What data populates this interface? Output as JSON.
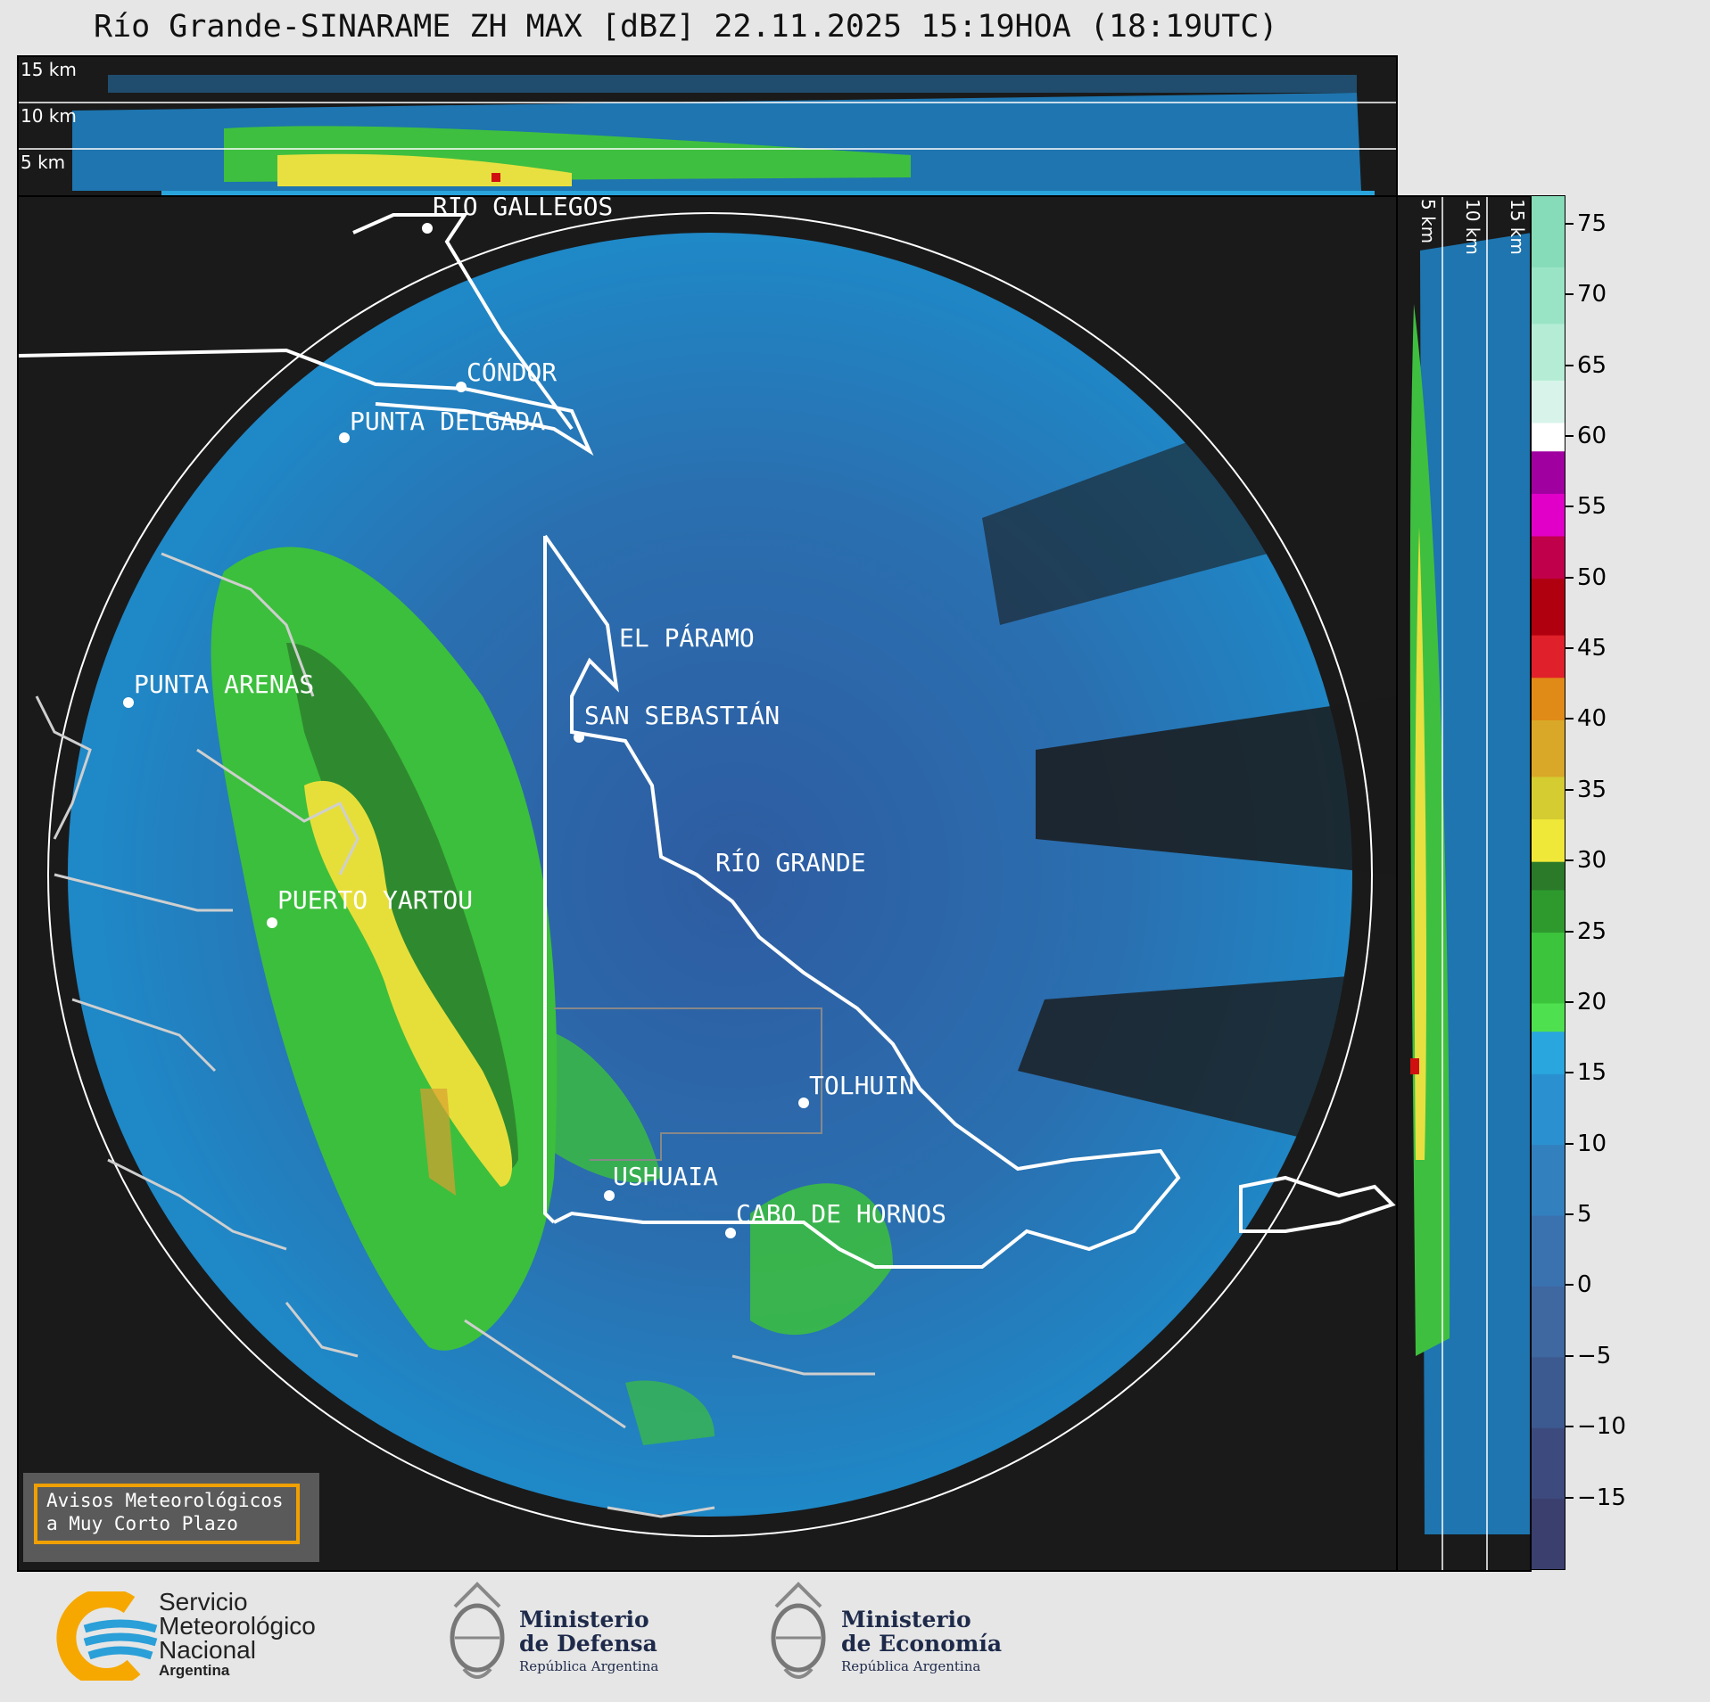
{
  "title": "Río Grande-SINARAME ZH MAX [dBZ] 22.11.2025 15:19HOA (18:19UTC)",
  "top_panel": {
    "levels": [
      "15 km",
      "10 km",
      "5 km"
    ]
  },
  "side_panel": {
    "levels": [
      "5 km",
      "10 km",
      "15 km"
    ]
  },
  "cities": [
    {
      "name": "RÍO GALLEGOS"
    },
    {
      "name": "CÓNDOR"
    },
    {
      "name": "PUNTA DELGADA"
    },
    {
      "name": "EL PÁRAMO"
    },
    {
      "name": "PUNTA ARENAS"
    },
    {
      "name": "SAN SEBASTIÁN"
    },
    {
      "name": "RÍO GRANDE"
    },
    {
      "name": "PUERTO YARTOU"
    },
    {
      "name": "TOLHUIN"
    },
    {
      "name": "USHUAIA"
    },
    {
      "name": "CABO DE HORNOS"
    }
  ],
  "colorbar": {
    "unit": "dBZ",
    "range": [
      -20,
      77
    ],
    "ticks": [
      "75",
      "70",
      "65",
      "60",
      "55",
      "50",
      "45",
      "40",
      "35",
      "30",
      "25",
      "20",
      "15",
      "10",
      "5",
      "0",
      "−5",
      "−10",
      "−15"
    ],
    "tick_values": [
      75,
      70,
      65,
      60,
      55,
      50,
      45,
      40,
      35,
      30,
      25,
      20,
      15,
      10,
      5,
      0,
      -5,
      -10,
      -15
    ]
  },
  "warning": {
    "line1": "Avisos Meteorológicos",
    "line2": "a Muy Corto Plazo"
  },
  "logos": {
    "smn": {
      "line1": "Servicio",
      "line2": "Meteorológico",
      "line3": "Nacional",
      "line4": "Argentina"
    },
    "defensa": {
      "line1": "Ministerio",
      "line2": "de Defensa",
      "line3": "República Argentina"
    },
    "economia": {
      "line1": "Ministerio",
      "line2": "de Economía",
      "line3": "República Argentina"
    }
  },
  "colors": {
    "background": "#1a1a1a",
    "page": "#e6e6e6",
    "accent_orange": "#f0a000",
    "smn_blue": "#2a9fd8",
    "smn_orange": "#f6a800"
  }
}
